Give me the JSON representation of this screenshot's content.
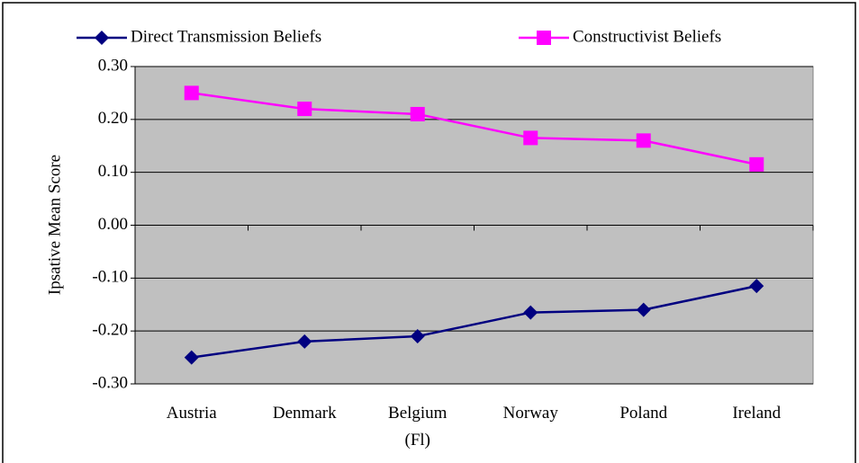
{
  "chart_data": {
    "type": "line",
    "y_label": "Ipsative Mean Score",
    "categories": [
      "Austria",
      "Denmark",
      "Belgium (Fl)",
      "Norway",
      "Poland",
      "Ireland"
    ],
    "series": [
      {
        "name": "Direct Transmission Beliefs",
        "color": "#000080",
        "marker": "diamond",
        "values": [
          -0.25,
          -0.22,
          -0.21,
          -0.165,
          -0.16,
          -0.115
        ]
      },
      {
        "name": "Constructivist Beliefs",
        "color": "#ff00ff",
        "marker": "square",
        "values": [
          0.25,
          0.22,
          0.21,
          0.165,
          0.16,
          0.115
        ]
      }
    ],
    "ylim": [
      -0.3,
      0.3
    ],
    "yticks": [
      {
        "value": -0.3,
        "label": "-0.30"
      },
      {
        "value": -0.2,
        "label": "-0.20"
      },
      {
        "value": -0.1,
        "label": "-0.10"
      },
      {
        "value": 0,
        "label": "0.00"
      },
      {
        "value": 0.1,
        "label": "0.10"
      },
      {
        "value": 0.2,
        "label": "0.20"
      },
      {
        "value": 0.3,
        "label": "0.30"
      }
    ],
    "grid": true,
    "plot_background": "#c0c0c0",
    "legend": "top"
  }
}
